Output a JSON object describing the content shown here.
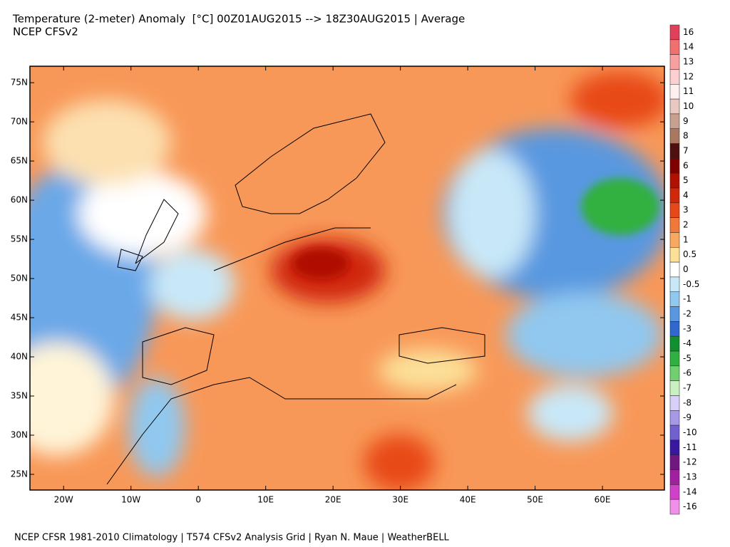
{
  "header": {
    "title": "Temperature (2-meter) Anomaly  [°C] 00Z01AUG2015 --> 18Z30AUG2015 | Average",
    "subtitle": "NCEP CFSv2"
  },
  "map": {
    "lonlim": [
      -25,
      69.2
    ],
    "latlim": [
      23,
      77.1
    ],
    "lat_ticks": [
      {
        "value": 75,
        "label": "75N"
      },
      {
        "value": 70,
        "label": "70N"
      },
      {
        "value": 65,
        "label": "65N"
      },
      {
        "value": 60,
        "label": "60N"
      },
      {
        "value": 55,
        "label": "55N"
      },
      {
        "value": 50,
        "label": "50N"
      },
      {
        "value": 45,
        "label": "45N"
      },
      {
        "value": 40,
        "label": "40N"
      },
      {
        "value": 35,
        "label": "35N"
      },
      {
        "value": 30,
        "label": "30N"
      },
      {
        "value": 25,
        "label": "25N"
      }
    ],
    "lon_ticks": [
      {
        "value": -20,
        "label": "20W"
      },
      {
        "value": -10,
        "label": "10W"
      },
      {
        "value": 0,
        "label": "0"
      },
      {
        "value": 10,
        "label": "10E"
      },
      {
        "value": 20,
        "label": "20E"
      },
      {
        "value": 30,
        "label": "30E"
      },
      {
        "value": 40,
        "label": "40E"
      },
      {
        "value": 50,
        "label": "50E"
      },
      {
        "value": 60,
        "label": "60E"
      }
    ]
  },
  "colorbar": {
    "labels": [
      16,
      14,
      13,
      12,
      11,
      10,
      9,
      8,
      7,
      6,
      5,
      4,
      3,
      2,
      1,
      0.5,
      0,
      -0.5,
      -1,
      -2,
      -3,
      -4,
      -5,
      -6,
      -7,
      -8,
      -9,
      -10,
      -11,
      -12,
      -13,
      -14,
      -16
    ],
    "colors": [
      "#e0405a",
      "#f07070",
      "#f8a0a0",
      "#fcd0d0",
      "#fff0f0",
      "#e8c8c0",
      "#c8a090",
      "#a87860",
      "#501010",
      "#800000",
      "#b01000",
      "#d02808",
      "#e84818",
      "#f07838",
      "#f8a860",
      "#fce098",
      "#ffffff",
      "#c8e8f8",
      "#90c8f0",
      "#5898e0",
      "#3068d0",
      "#109030",
      "#30b040",
      "#70d070",
      "#c8f0c0",
      "#d8d0f8",
      "#a898e8",
      "#7060d0",
      "#3818a0",
      "#701880",
      "#a020a0",
      "#d040c8",
      "#f090e8"
    ]
  },
  "footer": "NCEP CFSR 1981-2010 Climatology | T574 CFSv2 Analysis Grid | Ryan N. Maue | WeatherBELL"
}
